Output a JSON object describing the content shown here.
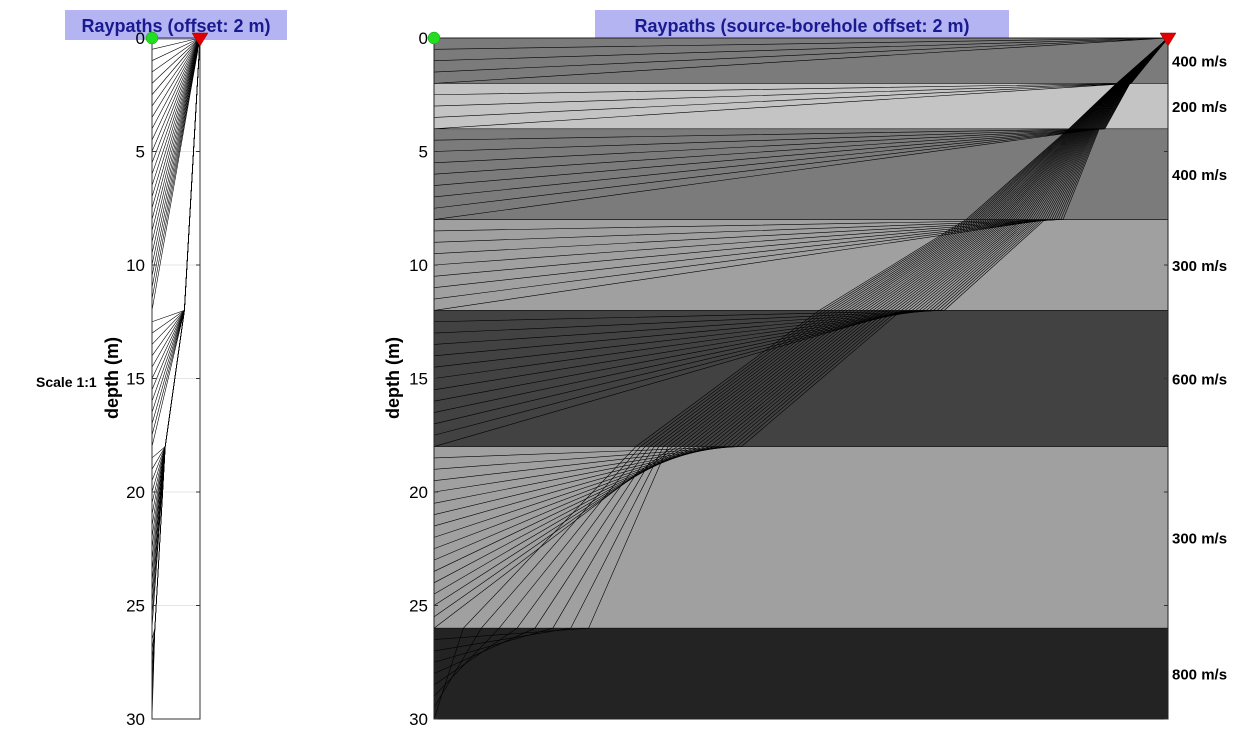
{
  "figure": {
    "scale_label": "Scale 1:1"
  },
  "chart_data": [
    {
      "type": "line",
      "title": "Raypaths (offset: 2 m)",
      "ylabel": "depth (m)",
      "xlabel": "",
      "y_ticks": [
        0,
        5,
        10,
        15,
        20,
        25,
        30
      ],
      "ylim": [
        0,
        30
      ],
      "xlim": [
        0,
        2
      ],
      "y_reversed": true,
      "grid": true,
      "source": {
        "x": 0,
        "depth": 0,
        "marker": "circle",
        "color": "#22dd22"
      },
      "receiver": {
        "x": 2,
        "depth": 0,
        "marker": "triangle-down",
        "color": "#e00000"
      },
      "ray_count": 60,
      "ray_target_depth_step": 0.5
    },
    {
      "type": "line",
      "title": "Raypaths (source-borehole offset: 2 m)",
      "ylabel": "depth (m)",
      "xlabel": "",
      "y_ticks": [
        0,
        5,
        10,
        15,
        20,
        25,
        30
      ],
      "ylim": [
        0,
        30
      ],
      "xlim": [
        0,
        2
      ],
      "y_reversed": true,
      "grid": false,
      "source": {
        "x": 0,
        "depth": 0,
        "marker": "circle",
        "color": "#22dd22"
      },
      "receiver": {
        "x": 2,
        "depth": 0,
        "marker": "triangle-down",
        "color": "#e00000"
      },
      "ray_count": 60,
      "ray_target_depth_step": 0.5,
      "layers": [
        {
          "top": 0,
          "bottom": 2,
          "velocity": 400,
          "label": "400 m/s",
          "color": "#7b7b7b"
        },
        {
          "top": 2,
          "bottom": 4,
          "velocity": 200,
          "label": "200 m/s",
          "color": "#c4c4c4"
        },
        {
          "top": 4,
          "bottom": 8,
          "velocity": 400,
          "label": "400 m/s",
          "color": "#7b7b7b"
        },
        {
          "top": 8,
          "bottom": 12,
          "velocity": 300,
          "label": "300 m/s",
          "color": "#a0a0a0"
        },
        {
          "top": 12,
          "bottom": 18,
          "velocity": 600,
          "label": "600 m/s",
          "color": "#424242"
        },
        {
          "top": 18,
          "bottom": 26,
          "velocity": 300,
          "label": "300 m/s",
          "color": "#a0a0a0"
        },
        {
          "top": 26,
          "bottom": 30,
          "velocity": 800,
          "label": "800 m/s",
          "color": "#232323"
        }
      ]
    }
  ]
}
